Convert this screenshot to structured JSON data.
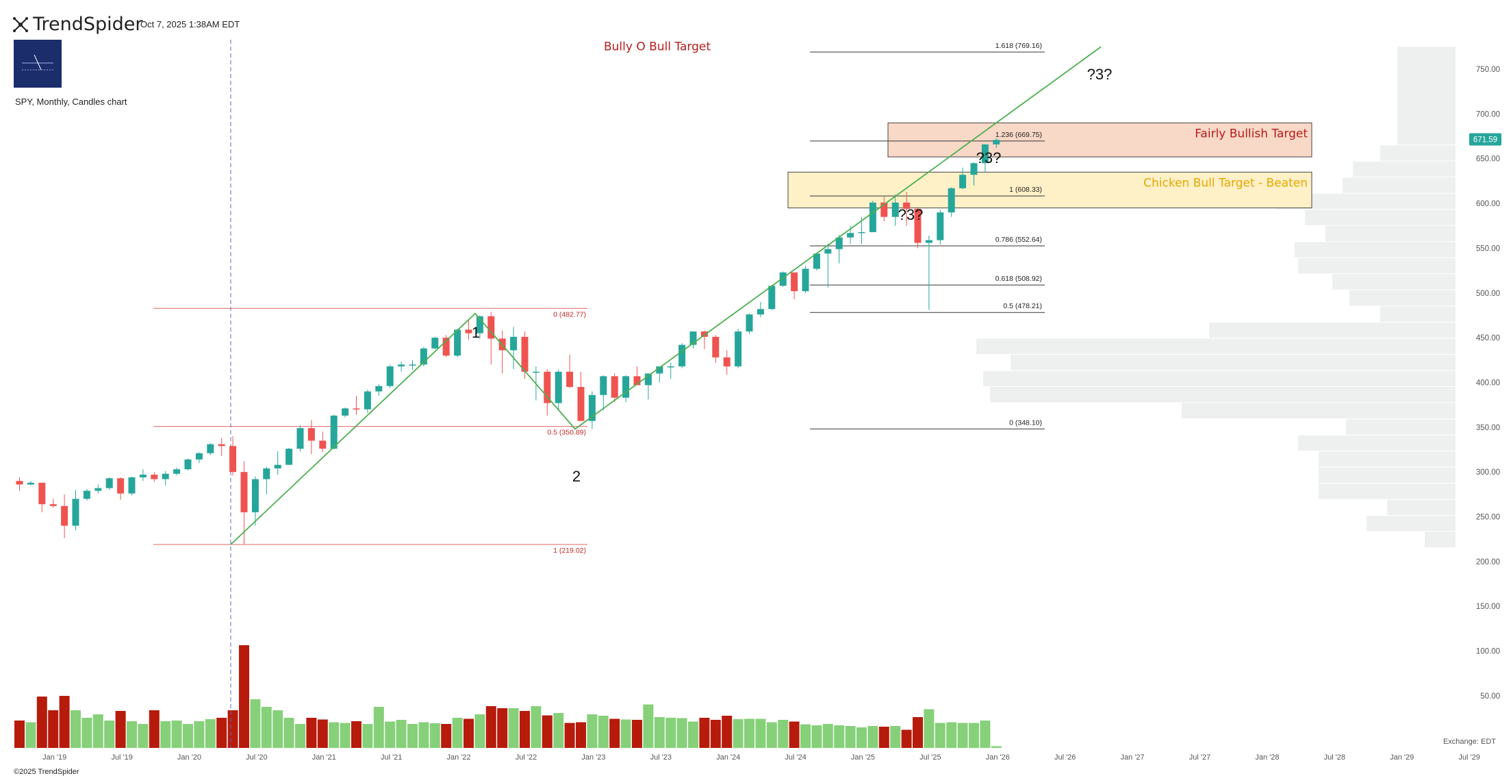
{
  "header": {
    "brand_name": "TrendSpider",
    "timestamp": "Oct 7, 2025 1:38AM EDT",
    "chart_subtitle": "SPY, Monthly, Candles chart",
    "copyright": "©2025 TrendSpider",
    "exchange": "Exchange: EDT",
    "current_price_label": "671.59"
  },
  "colors": {
    "up": "#26a69a",
    "down": "#ef5350",
    "vol_up": "#86d07a",
    "vol_down": "#b61b0c",
    "trend": "#4caf50",
    "fib_red": "#e06666",
    "fib_black": "#333333",
    "profile": "#eef0f0",
    "price_tag": "#26a69a"
  },
  "chart_data": {
    "type": "candlestick",
    "symbol": "SPY",
    "timeframe": "Monthly",
    "y_ticks": [
      "50.00",
      "100.00",
      "150.00",
      "200.00",
      "250.00",
      "300.00",
      "350.00",
      "400.00",
      "450.00",
      "500.00",
      "550.00",
      "600.00",
      "650.00",
      "700.00",
      "750.00"
    ],
    "x_ticks": [
      "Jan '19",
      "Jul '19",
      "Jan '20",
      "Jul '20",
      "Jan '21",
      "Jul '21",
      "Jan '22",
      "Jul '22",
      "Jan '23",
      "Jul '23",
      "Jan '24",
      "Jul '24",
      "Jan '25",
      "Jul '25",
      "Jan '26",
      "Jul '26",
      "Jan '27",
      "Jul '27",
      "Jan '28",
      "Jul '28",
      "Jan '29",
      "Jul '29"
    ],
    "ylim": [
      0,
      800
    ],
    "x_start": "2018-10",
    "candles": [
      {
        "o": 290,
        "h": 294,
        "l": 279,
        "c": 286
      },
      {
        "o": 286,
        "h": 290,
        "l": 285,
        "c": 288
      },
      {
        "o": 288,
        "h": 288,
        "l": 255,
        "c": 264
      },
      {
        "o": 264,
        "h": 270,
        "l": 260,
        "c": 262
      },
      {
        "o": 262,
        "h": 275,
        "l": 226,
        "c": 240
      },
      {
        "o": 240,
        "h": 280,
        "l": 235,
        "c": 270
      },
      {
        "o": 270,
        "h": 281,
        "l": 268,
        "c": 279
      },
      {
        "o": 279,
        "h": 286,
        "l": 276,
        "c": 282
      },
      {
        "o": 282,
        "h": 294,
        "l": 280,
        "c": 293
      },
      {
        "o": 293,
        "h": 294,
        "l": 269,
        "c": 276
      },
      {
        "o": 276,
        "h": 295,
        "l": 274,
        "c": 294
      },
      {
        "o": 294,
        "h": 303,
        "l": 290,
        "c": 297
      },
      {
        "o": 297,
        "h": 300,
        "l": 289,
        "c": 292
      },
      {
        "o": 292,
        "h": 301,
        "l": 285,
        "c": 298
      },
      {
        "o": 298,
        "h": 305,
        "l": 296,
        "c": 303
      },
      {
        "o": 303,
        "h": 315,
        "l": 302,
        "c": 314
      },
      {
        "o": 314,
        "h": 322,
        "l": 310,
        "c": 321
      },
      {
        "o": 321,
        "h": 332,
        "l": 319,
        "c": 331
      },
      {
        "o": 331,
        "h": 338,
        "l": 318,
        "c": 329
      },
      {
        "o": 329,
        "h": 340,
        "l": 296,
        "c": 300
      },
      {
        "o": 300,
        "h": 312,
        "l": 219,
        "c": 255
      },
      {
        "o": 255,
        "h": 295,
        "l": 240,
        "c": 292
      },
      {
        "o": 292,
        "h": 306,
        "l": 275,
        "c": 304
      },
      {
        "o": 304,
        "h": 323,
        "l": 297,
        "c": 308
      },
      {
        "o": 308,
        "h": 327,
        "l": 308,
        "c": 326
      },
      {
        "o": 326,
        "h": 352,
        "l": 323,
        "c": 349
      },
      {
        "o": 349,
        "h": 358,
        "l": 320,
        "c": 335
      },
      {
        "o": 335,
        "h": 345,
        "l": 322,
        "c": 326
      },
      {
        "o": 326,
        "h": 364,
        "l": 325,
        "c": 363
      },
      {
        "o": 363,
        "h": 372,
        "l": 361,
        "c": 371
      },
      {
        "o": 371,
        "h": 385,
        "l": 364,
        "c": 370
      },
      {
        "o": 370,
        "h": 392,
        "l": 366,
        "c": 390
      },
      {
        "o": 390,
        "h": 398,
        "l": 385,
        "c": 396
      },
      {
        "o": 396,
        "h": 420,
        "l": 394,
        "c": 418
      },
      {
        "o": 418,
        "h": 423,
        "l": 412,
        "c": 420
      },
      {
        "o": 420,
        "h": 425,
        "l": 414,
        "c": 420
      },
      {
        "o": 420,
        "h": 440,
        "l": 418,
        "c": 438
      },
      {
        "o": 438,
        "h": 451,
        "l": 437,
        "c": 450
      },
      {
        "o": 450,
        "h": 453,
        "l": 428,
        "c": 430
      },
      {
        "o": 430,
        "h": 460,
        "l": 428,
        "c": 459
      },
      {
        "o": 459,
        "h": 470,
        "l": 448,
        "c": 455
      },
      {
        "o": 455,
        "h": 475,
        "l": 449,
        "c": 474
      },
      {
        "o": 474,
        "h": 479,
        "l": 420,
        "c": 449
      },
      {
        "o": 449,
        "h": 458,
        "l": 410,
        "c": 436
      },
      {
        "o": 436,
        "h": 462,
        "l": 415,
        "c": 451
      },
      {
        "o": 451,
        "h": 457,
        "l": 404,
        "c": 412
      },
      {
        "o": 412,
        "h": 418,
        "l": 380,
        "c": 412
      },
      {
        "o": 412,
        "h": 415,
        "l": 363,
        "c": 377
      },
      {
        "o": 377,
        "h": 414,
        "l": 370,
        "c": 412
      },
      {
        "o": 412,
        "h": 431,
        "l": 394,
        "c": 395
      },
      {
        "o": 395,
        "h": 412,
        "l": 357,
        "c": 357
      },
      {
        "o": 357,
        "h": 390,
        "l": 348,
        "c": 386
      },
      {
        "o": 386,
        "h": 408,
        "l": 369,
        "c": 407
      },
      {
        "o": 407,
        "h": 410,
        "l": 378,
        "c": 383
      },
      {
        "o": 383,
        "h": 408,
        "l": 378,
        "c": 407
      },
      {
        "o": 407,
        "h": 418,
        "l": 397,
        "c": 397
      },
      {
        "o": 397,
        "h": 410,
        "l": 381,
        "c": 410
      },
      {
        "o": 410,
        "h": 417,
        "l": 400,
        "c": 418
      },
      {
        "o": 418,
        "h": 422,
        "l": 404,
        "c": 418
      },
      {
        "o": 418,
        "h": 444,
        "l": 416,
        "c": 442
      },
      {
        "o": 442,
        "h": 456,
        "l": 438,
        "c": 457
      },
      {
        "o": 457,
        "h": 458,
        "l": 437,
        "c": 451
      },
      {
        "o": 451,
        "h": 453,
        "l": 422,
        "c": 428
      },
      {
        "o": 428,
        "h": 436,
        "l": 409,
        "c": 418
      },
      {
        "o": 418,
        "h": 460,
        "l": 416,
        "c": 457
      },
      {
        "o": 457,
        "h": 477,
        "l": 454,
        "c": 476
      },
      {
        "o": 476,
        "h": 490,
        "l": 473,
        "c": 482
      },
      {
        "o": 482,
        "h": 509,
        "l": 481,
        "c": 508
      },
      {
        "o": 508,
        "h": 524,
        "l": 507,
        "c": 523
      },
      {
        "o": 523,
        "h": 523,
        "l": 493,
        "c": 502
      },
      {
        "o": 502,
        "h": 530,
        "l": 500,
        "c": 527
      },
      {
        "o": 527,
        "h": 545,
        "l": 525,
        "c": 544
      },
      {
        "o": 544,
        "h": 555,
        "l": 506,
        "c": 549
      },
      {
        "o": 549,
        "h": 565,
        "l": 533,
        "c": 562
      },
      {
        "o": 562,
        "h": 575,
        "l": 555,
        "c": 567
      },
      {
        "o": 567,
        "h": 585,
        "l": 555,
        "c": 568
      },
      {
        "o": 568,
        "h": 603,
        "l": 568,
        "c": 601
      },
      {
        "o": 601,
        "h": 608,
        "l": 580,
        "c": 585
      },
      {
        "o": 585,
        "h": 610,
        "l": 575,
        "c": 601
      },
      {
        "o": 601,
        "h": 613,
        "l": 575,
        "c": 594
      },
      {
        "o": 594,
        "h": 596,
        "l": 550,
        "c": 556
      },
      {
        "o": 556,
        "h": 564,
        "l": 481,
        "c": 559
      },
      {
        "o": 559,
        "h": 593,
        "l": 554,
        "c": 590
      },
      {
        "o": 590,
        "h": 618,
        "l": 585,
        "c": 617
      },
      {
        "o": 617,
        "h": 640,
        "l": 616,
        "c": 632
      },
      {
        "o": 632,
        "h": 646,
        "l": 620,
        "c": 645
      },
      {
        "o": 645,
        "h": 666,
        "l": 635,
        "c": 666
      },
      {
        "o": 666,
        "h": 673,
        "l": 662,
        "c": 671
      }
    ],
    "volumes": [
      80,
      75,
      150,
      110,
      152,
      110,
      88,
      98,
      80,
      108,
      78,
      70,
      110,
      78,
      80,
      70,
      78,
      84,
      88,
      110,
      300,
      142,
      120,
      110,
      88,
      70,
      88,
      83,
      75,
      73,
      78,
      70,
      120,
      77,
      82,
      70,
      75,
      72,
      70,
      88,
      85,
      98,
      122,
      116,
      116,
      108,
      122,
      95,
      102,
      73,
      75,
      98,
      94,
      85,
      83,
      82,
      127,
      90,
      88,
      87,
      77,
      88,
      82,
      94,
      84,
      85,
      85,
      75,
      82,
      77,
      69,
      66,
      70,
      66,
      64,
      60,
      64,
      62,
      64,
      53,
      90,
      113,
      73,
      75,
      73,
      73,
      80,
      5
    ],
    "volume_ylim": [
      0,
      340
    ],
    "volume_labels": [
      "50.00",
      "100.00",
      "150.00"
    ],
    "fib_retracement_red": {
      "levels": [
        {
          "label": "0 (482.77)",
          "price": 482.77
        },
        {
          "label": "0.5 (350.89)",
          "price": 350.89
        },
        {
          "label": "1 (219.02)",
          "price": 219.02
        }
      ]
    },
    "fib_extension_black": {
      "levels": [
        {
          "label": "1.618 (769.16)",
          "price": 769.16
        },
        {
          "label": "1.236 (669.75)",
          "price": 669.75
        },
        {
          "label": "1 (608.33)",
          "price": 608.33
        },
        {
          "label": "0.786 (552.64)",
          "price": 552.64
        },
        {
          "label": "0.618 (508.92)",
          "price": 508.92
        },
        {
          "label": "0.5 (478.21)",
          "price": 478.21
        },
        {
          "label": "0 (348.10)",
          "price": 348.1
        }
      ]
    },
    "targets": [
      {
        "label": "Bully O Bull Target",
        "top": 787,
        "bottom": 752,
        "fill": "#eccaca",
        "color": "#b71c1c"
      },
      {
        "label": "Fairly Bullish Target",
        "top": 690,
        "bottom": 652,
        "fill": "#f8d8c6",
        "color": "#b71c1c"
      },
      {
        "label": "Chicken Bull Target - Beaten",
        "top": 635,
        "bottom": 595,
        "fill": "#fef0c7",
        "color": "#e6a700"
      }
    ],
    "wave_labels": [
      "1",
      "2"
    ],
    "question_labels": [
      "?3?",
      "?3?",
      "?3?"
    ],
    "volume_profile": [
      {
        "price": 775,
        "w": 0
      },
      {
        "price": 665,
        "w": 85
      },
      {
        "price": 647,
        "w": 110
      },
      {
        "price": 629,
        "w": 150
      },
      {
        "price": 611,
        "w": 165
      },
      {
        "price": 593,
        "w": 260
      },
      {
        "price": 575,
        "w": 220
      },
      {
        "price": 557,
        "w": 190
      },
      {
        "price": 539,
        "w": 235
      },
      {
        "price": 521,
        "w": 230
      },
      {
        "price": 503,
        "w": 180
      },
      {
        "price": 485,
        "w": 155
      },
      {
        "price": 467,
        "w": 110
      },
      {
        "price": 449,
        "w": 360
      },
      {
        "price": 431,
        "w": 700
      },
      {
        "price": 413,
        "w": 650
      },
      {
        "price": 395,
        "w": 690
      },
      {
        "price": 377,
        "w": 680
      },
      {
        "price": 359,
        "w": 400
      },
      {
        "price": 341,
        "w": 160
      },
      {
        "price": 323,
        "w": 230
      },
      {
        "price": 305,
        "w": 200
      },
      {
        "price": 287,
        "w": 200
      },
      {
        "price": 269,
        "w": 200
      },
      {
        "price": 251,
        "w": 100
      },
      {
        "price": 233,
        "w": 130
      },
      {
        "price": 215,
        "w": 45
      }
    ],
    "current_price": 671.59
  }
}
